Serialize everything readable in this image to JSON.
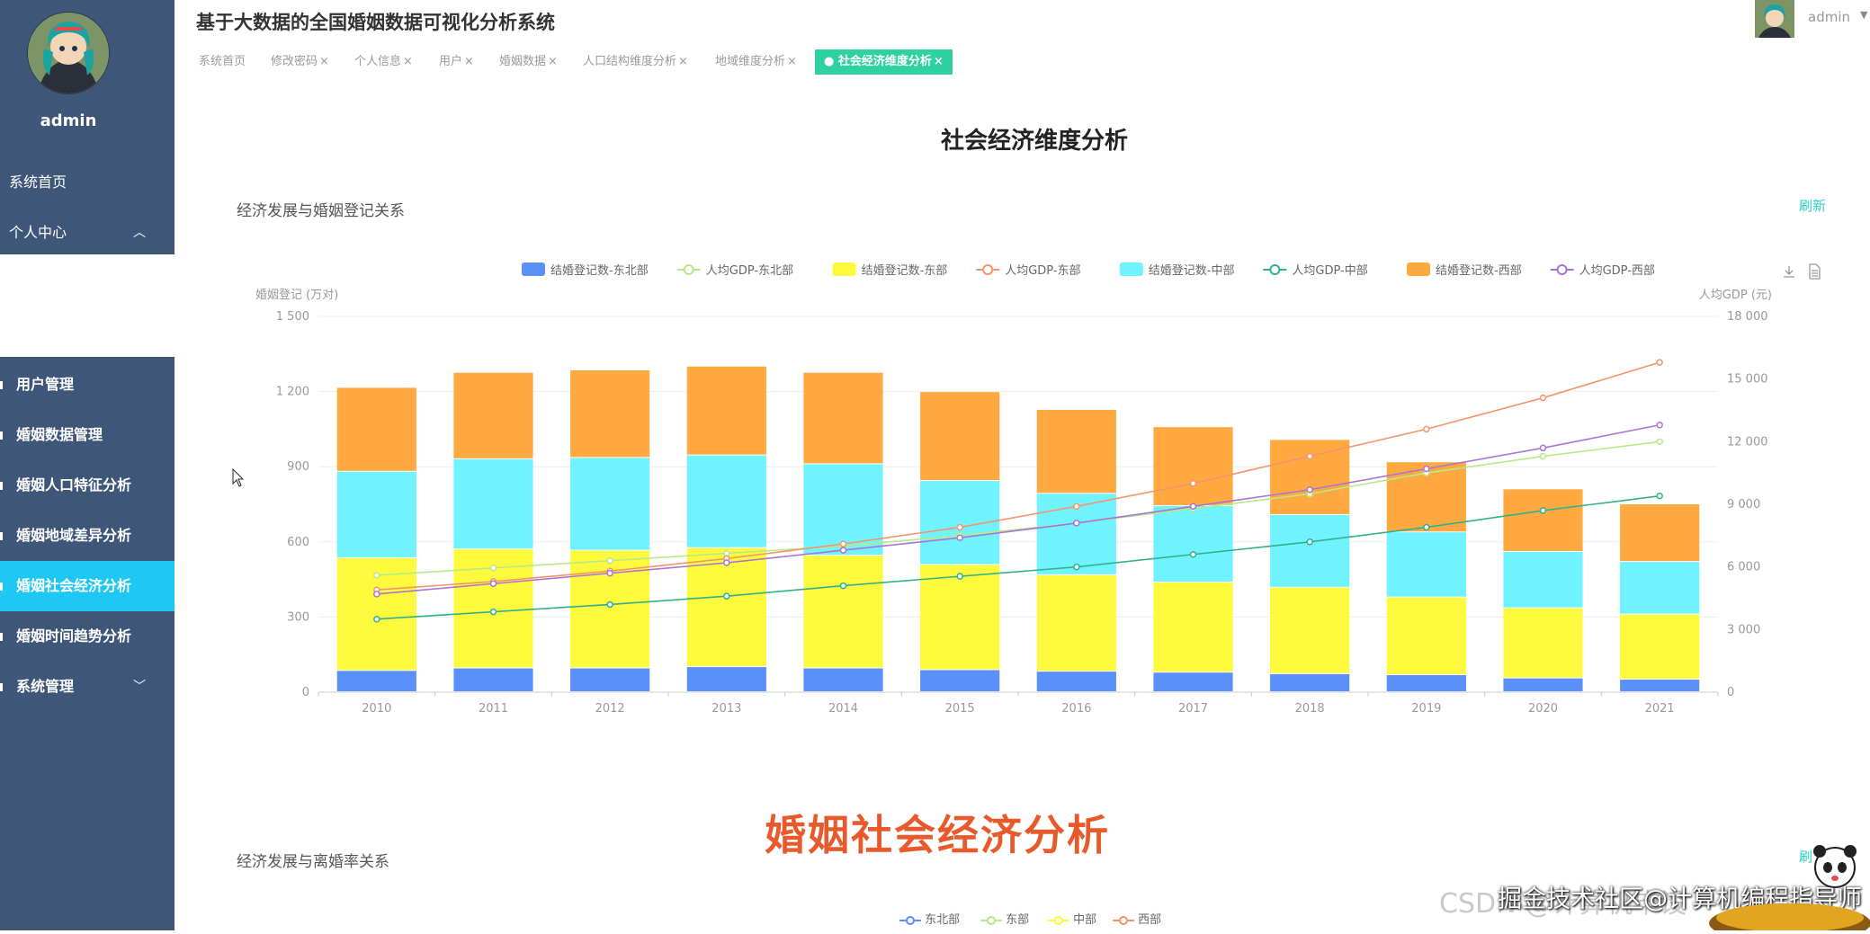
{
  "app": {
    "title": "基于大数据的全国婚姻数据可视化分析系统"
  },
  "user": {
    "name": "admin"
  },
  "sidebar": {
    "username": "admin",
    "items": [
      {
        "label": "系统首页"
      },
      {
        "label": "个人中心"
      },
      {
        "label": "用户管理"
      },
      {
        "label": "婚姻数据管理"
      },
      {
        "label": "婚姻人口特征分析"
      },
      {
        "label": "婚姻地域差异分析"
      },
      {
        "label": "婚姻社会经济分析"
      },
      {
        "label": "婚姻时间趋势分析"
      },
      {
        "label": "系统管理"
      }
    ],
    "active_color": "#1fc8f2",
    "bg_color": "#3e5677"
  },
  "tabs": [
    {
      "label": "系统首页",
      "close": ""
    },
    {
      "label": "修改密码",
      "close": "×"
    },
    {
      "label": "个人信息",
      "close": "×"
    },
    {
      "label": "用户",
      "close": "×"
    },
    {
      "label": "婚姻数据",
      "close": "×"
    },
    {
      "label": "人口结构维度分析",
      "close": "×"
    },
    {
      "label": "地域维度分析",
      "close": "×"
    },
    {
      "label": "● 社会经济维度分析",
      "close": "×"
    }
  ],
  "main": {
    "heading": "社会经济维度分析",
    "panel1": {
      "title": "经济发展与婚姻登记关系",
      "refresh": "刷新"
    },
    "panel2": {
      "title": "经济发展与离婚率关系",
      "refresh": "刷"
    },
    "overlay_text": "婚姻社会经济分析",
    "watermark1": "CSDN @计算机毕设",
    "watermark2": "掘金技术社区@计算机编程指导师"
  },
  "chart_data": {
    "type": "bar",
    "title": "",
    "ylabel_left": "婚姻登记 (万对)",
    "ylabel_right": "人均GDP (元)",
    "ylim_left": [
      0,
      1500
    ],
    "ylim_right": [
      0,
      18000
    ],
    "yticks_left": [
      "0",
      "300",
      "600",
      "900",
      "1 200",
      "1 500"
    ],
    "yticks_right": [
      "0",
      "3 000",
      "6 000",
      "9 000",
      "12 000",
      "15 000",
      "18 000"
    ],
    "categories": [
      "2010",
      "2011",
      "2012",
      "2013",
      "2014",
      "2015",
      "2016",
      "2017",
      "2018",
      "2019",
      "2020",
      "2021"
    ],
    "legend_position": "top-center",
    "series": [
      {
        "name": "结婚登记数-东北部",
        "type": "bar",
        "stack": "total",
        "color": "#5b8ff9",
        "values": [
          85,
          95,
          95,
          100,
          95,
          88,
          82,
          78,
          72,
          68,
          55,
          50
        ]
      },
      {
        "name": "人均GDP-东北部",
        "type": "line",
        "axis": "right",
        "color": "#b8e986",
        "values": [
          5600,
          5950,
          6300,
          6650,
          7000,
          7500,
          8100,
          8800,
          9500,
          10500,
          11300,
          12000
        ]
      },
      {
        "name": "结婚登记数-东部",
        "type": "bar",
        "stack": "total",
        "color": "#fdfa3d",
        "values": [
          450,
          475,
          470,
          475,
          450,
          420,
          385,
          360,
          345,
          310,
          280,
          260
        ]
      },
      {
        "name": "人均GDP-东部",
        "type": "line",
        "axis": "right",
        "color": "#f4946d",
        "values": [
          4900,
          5300,
          5800,
          6400,
          7100,
          7900,
          8900,
          10000,
          11300,
          12600,
          14100,
          15800
        ]
      },
      {
        "name": "结婚登记数-中部",
        "type": "bar",
        "stack": "total",
        "color": "#70f3ff",
        "values": [
          345,
          360,
          370,
          370,
          365,
          335,
          325,
          305,
          290,
          260,
          225,
          210
        ]
      },
      {
        "name": "人均GDP-中部",
        "type": "line",
        "axis": "right",
        "color": "#32b08d",
        "values": [
          3500,
          3850,
          4200,
          4600,
          5100,
          5550,
          6000,
          6600,
          7200,
          7900,
          8700,
          9400
        ]
      },
      {
        "name": "结婚登记数-西部",
        "type": "bar",
        "stack": "total",
        "color": "#ffa940",
        "values": [
          335,
          345,
          350,
          355,
          365,
          355,
          335,
          315,
          300,
          280,
          250,
          230
        ]
      },
      {
        "name": "人均GDP-西部",
        "type": "line",
        "axis": "right",
        "color": "#a775d6",
        "values": [
          4700,
          5200,
          5700,
          6200,
          6800,
          7400,
          8100,
          8900,
          9700,
          10700,
          11700,
          12800
        ]
      }
    ]
  },
  "chart2_legend": [
    {
      "name": "东北部",
      "color": "#5b8ff9"
    },
    {
      "name": "东部",
      "color": "#b8e986"
    },
    {
      "name": "中部",
      "color": "#fdfa3d"
    },
    {
      "name": "西部",
      "color": "#f4946d"
    }
  ]
}
